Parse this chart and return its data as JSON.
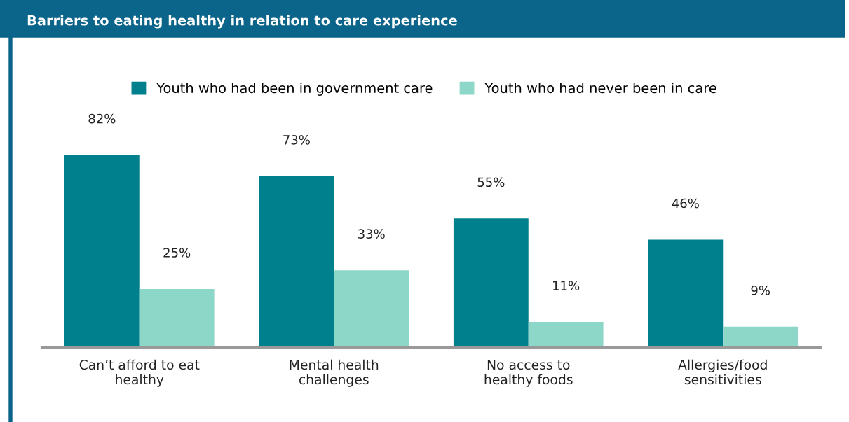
{
  "chart_data": {
    "type": "bar",
    "title": "Barriers to eating healthy in relation to care experience",
    "categories": [
      "Can’t afford to eat\nhealthy",
      "Mental health\nchallenges",
      "No access to\nhealthy foods",
      "Allergies/food\nsensitivities"
    ],
    "series": [
      {
        "name": "Youth who had been in government care",
        "color": "#007f8c",
        "values": [
          82,
          73,
          55,
          46
        ],
        "value_labels": [
          "82%",
          "73%",
          "55%",
          "46%"
        ]
      },
      {
        "name": "Youth who had never been in care",
        "color": "#8dd7c9",
        "values": [
          25,
          33,
          11,
          9
        ],
        "value_labels": [
          "25%",
          "33%",
          "11%",
          "9%"
        ]
      }
    ],
    "legend": "top",
    "grid": false
  }
}
